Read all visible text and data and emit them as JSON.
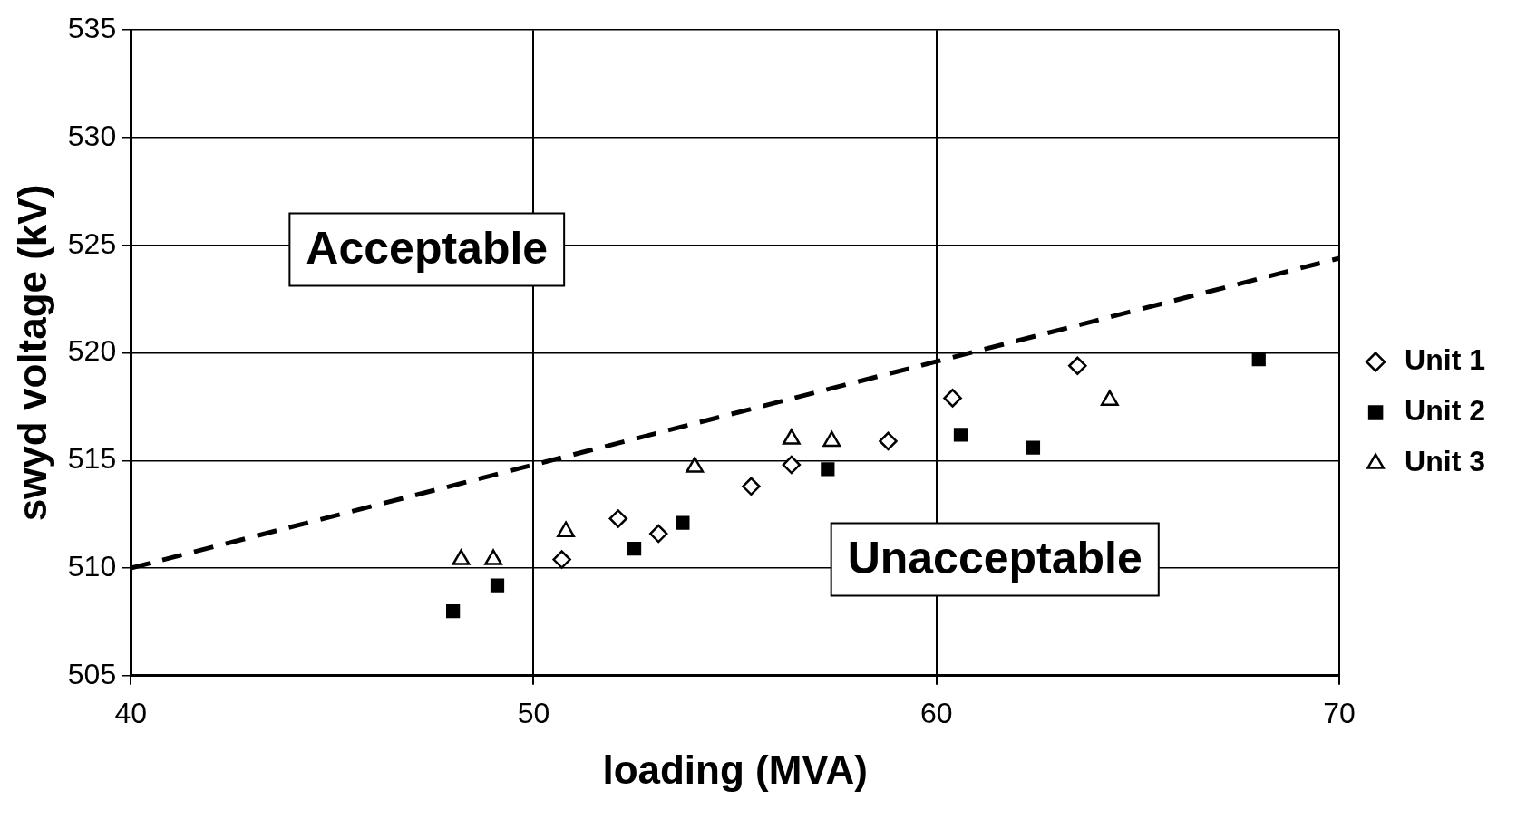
{
  "chart_data": {
    "type": "scatter",
    "xlabel": "loading (MVA)",
    "ylabel": "swyd voltage (kV)",
    "xlim": [
      40,
      70
    ],
    "xticks": [
      40,
      50,
      60,
      70
    ],
    "ylim": [
      505,
      535
    ],
    "yticks": [
      505,
      510,
      515,
      520,
      525,
      530,
      535
    ],
    "grid": true,
    "legend": "right",
    "annotations": [
      "Acceptable",
      "Unacceptable"
    ],
    "series": [
      {
        "name": "Unit 1",
        "color": "#000000",
        "marker": "diamond",
        "x": [
          50.7,
          52.1,
          53.1,
          55.4,
          56.4,
          58.8,
          60.4,
          63.5
        ],
        "values": [
          510.4,
          512.3,
          511.6,
          513.8,
          514.8,
          515.9,
          517.9,
          519.4
        ]
      },
      {
        "name": "Unit 2",
        "color": "#000000",
        "marker": "square",
        "x": [
          48.0,
          49.1,
          52.5,
          53.7,
          57.3,
          60.6,
          62.4,
          68.0
        ],
        "values": [
          508.0,
          509.2,
          510.9,
          512.1,
          514.6,
          516.2,
          515.6,
          519.7
        ]
      },
      {
        "name": "Unit 3",
        "color": "#000000",
        "marker": "triangle",
        "x": [
          48.2,
          49.0,
          50.8,
          54.0,
          56.4,
          57.4,
          64.3
        ],
        "values": [
          510.4,
          510.4,
          511.7,
          514.7,
          516.0,
          515.9,
          517.8
        ]
      },
      {
        "type": "line",
        "color": "#000000",
        "line_style": "dashed",
        "marker": "none",
        "x": [
          40,
          70
        ],
        "values": [
          510.0,
          524.4
        ]
      }
    ]
  }
}
